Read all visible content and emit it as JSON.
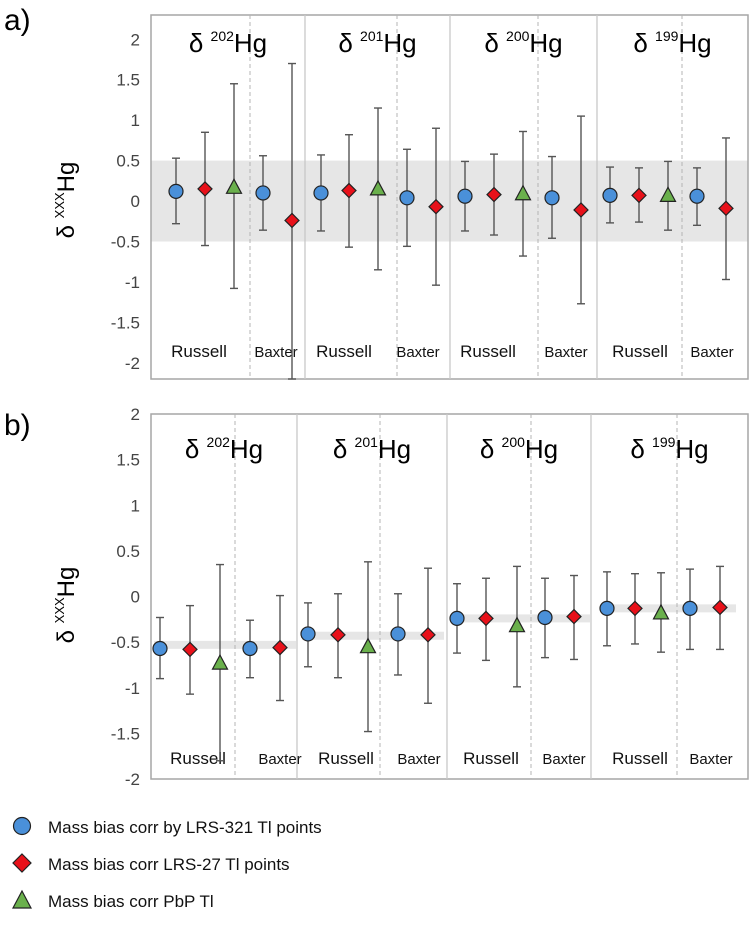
{
  "chart_data": [
    {
      "type": "scatter",
      "tag": "a)",
      "ylabel": "δ XXXHg",
      "ylim": [
        -2.2,
        2.3
      ],
      "yticks": [
        2,
        1.5,
        1,
        0.5,
        0,
        -0.5,
        -1,
        -1.5,
        -2
      ],
      "reference_band": [
        -0.5,
        0.5
      ],
      "groups": [
        {
          "prefix": "δ",
          "sup": "202",
          "suffix": "Hg",
          "labels": [
            "Russell",
            "Baxter"
          ],
          "points": [
            {
              "site": "Russell",
              "series": "LRS-321",
              "value": 0.12,
              "low": -0.28,
              "high": 0.53
            },
            {
              "site": "Russell",
              "series": "LRS-27",
              "value": 0.15,
              "low": -0.55,
              "high": 0.85
            },
            {
              "site": "Russell",
              "series": "PbP",
              "value": 0.17,
              "low": -1.08,
              "high": 1.45
            },
            {
              "site": "Baxter",
              "series": "LRS-321",
              "value": 0.1,
              "low": -0.36,
              "high": 0.56
            },
            {
              "site": "Baxter",
              "series": "LRS-27",
              "value": -0.24,
              "low": -2.2,
              "high": 1.7
            }
          ]
        },
        {
          "prefix": "δ",
          "sup": "201",
          "suffix": "Hg",
          "labels": [
            "Russell",
            "Baxter"
          ],
          "points": [
            {
              "site": "Russell",
              "series": "LRS-321",
              "value": 0.1,
              "low": -0.37,
              "high": 0.57
            },
            {
              "site": "Russell",
              "series": "LRS-27",
              "value": 0.13,
              "low": -0.57,
              "high": 0.82
            },
            {
              "site": "Russell",
              "series": "PbP",
              "value": 0.15,
              "low": -0.85,
              "high": 1.15
            },
            {
              "site": "Baxter",
              "series": "LRS-321",
              "value": 0.04,
              "low": -0.56,
              "high": 0.64
            },
            {
              "site": "Baxter",
              "series": "LRS-27",
              "value": -0.07,
              "low": -1.04,
              "high": 0.9
            }
          ]
        },
        {
          "prefix": "δ",
          "sup": "200",
          "suffix": "Hg",
          "labels": [
            "Russell",
            "Baxter"
          ],
          "points": [
            {
              "site": "Russell",
              "series": "LRS-321",
              "value": 0.06,
              "low": -0.37,
              "high": 0.49
            },
            {
              "site": "Russell",
              "series": "LRS-27",
              "value": 0.08,
              "low": -0.42,
              "high": 0.58
            },
            {
              "site": "Russell",
              "series": "PbP",
              "value": 0.09,
              "low": -0.68,
              "high": 0.86
            },
            {
              "site": "Baxter",
              "series": "LRS-321",
              "value": 0.04,
              "low": -0.46,
              "high": 0.55
            },
            {
              "site": "Baxter",
              "series": "LRS-27",
              "value": -0.11,
              "low": -1.27,
              "high": 1.05
            }
          ]
        },
        {
          "prefix": "δ",
          "sup": "199",
          "suffix": "Hg",
          "labels": [
            "Russell",
            "Baxter"
          ],
          "points": [
            {
              "site": "Russell",
              "series": "LRS-321",
              "value": 0.07,
              "low": -0.27,
              "high": 0.42
            },
            {
              "site": "Russell",
              "series": "LRS-27",
              "value": 0.07,
              "low": -0.26,
              "high": 0.41
            },
            {
              "site": "Russell",
              "series": "PbP",
              "value": 0.07,
              "low": -0.36,
              "high": 0.49
            },
            {
              "site": "Baxter",
              "series": "LRS-321",
              "value": 0.06,
              "low": -0.3,
              "high": 0.41
            },
            {
              "site": "Baxter",
              "series": "LRS-27",
              "value": -0.09,
              "low": -0.97,
              "high": 0.78
            }
          ]
        }
      ]
    },
    {
      "type": "scatter",
      "tag": "b)",
      "ylabel": "δ XXXHg",
      "ylim": [
        -2.0,
        2.0
      ],
      "yticks": [
        2,
        1.5,
        1,
        0.5,
        0,
        -0.5,
        -1,
        -1.5,
        -2
      ],
      "reference_levels": [
        -0.53,
        -0.43,
        -0.24,
        -0.13
      ],
      "groups": [
        {
          "prefix": "δ",
          "sup": "202",
          "suffix": "Hg",
          "labels": [
            "Russell",
            "Baxter"
          ],
          "points": [
            {
              "site": "Russell",
              "series": "LRS-321",
              "value": -0.57,
              "low": -0.9,
              "high": -0.23
            },
            {
              "site": "Russell",
              "series": "LRS-27",
              "value": -0.58,
              "low": -1.07,
              "high": -0.1
            },
            {
              "site": "Russell",
              "series": "PbP",
              "value": -0.73,
              "low": -1.8,
              "high": 0.35
            },
            {
              "site": "Baxter",
              "series": "LRS-321",
              "value": -0.57,
              "low": -0.89,
              "high": -0.26
            },
            {
              "site": "Baxter",
              "series": "LRS-27",
              "value": -0.56,
              "low": -1.14,
              "high": 0.01
            }
          ]
        },
        {
          "prefix": "δ",
          "sup": "201",
          "suffix": "Hg",
          "labels": [
            "Russell",
            "Baxter"
          ],
          "points": [
            {
              "site": "Russell",
              "series": "LRS-321",
              "value": -0.41,
              "low": -0.77,
              "high": -0.07
            },
            {
              "site": "Russell",
              "series": "LRS-27",
              "value": -0.42,
              "low": -0.89,
              "high": 0.03
            },
            {
              "site": "Russell",
              "series": "PbP",
              "value": -0.55,
              "low": -1.48,
              "high": 0.38
            },
            {
              "site": "Baxter",
              "series": "LRS-321",
              "value": -0.41,
              "low": -0.86,
              "high": 0.03
            },
            {
              "site": "Baxter",
              "series": "LRS-27",
              "value": -0.42,
              "low": -1.17,
              "high": 0.31
            }
          ]
        },
        {
          "prefix": "δ",
          "sup": "200",
          "suffix": "Hg",
          "labels": [
            "Russell",
            "Baxter"
          ],
          "points": [
            {
              "site": "Russell",
              "series": "LRS-321",
              "value": -0.24,
              "low": -0.62,
              "high": 0.14
            },
            {
              "site": "Russell",
              "series": "LRS-27",
              "value": -0.24,
              "low": -0.7,
              "high": 0.2
            },
            {
              "site": "Russell",
              "series": "PbP",
              "value": -0.32,
              "low": -0.99,
              "high": 0.33
            },
            {
              "site": "Baxter",
              "series": "LRS-321",
              "value": -0.23,
              "low": -0.67,
              "high": 0.2
            },
            {
              "site": "Baxter",
              "series": "LRS-27",
              "value": -0.22,
              "low": -0.69,
              "high": 0.23
            }
          ]
        },
        {
          "prefix": "δ",
          "sup": "199",
          "suffix": "Hg",
          "labels": [
            "Russell",
            "Baxter"
          ],
          "points": [
            {
              "site": "Russell",
              "series": "LRS-321",
              "value": -0.13,
              "low": -0.54,
              "high": 0.27
            },
            {
              "site": "Russell",
              "series": "LRS-27",
              "value": -0.13,
              "low": -0.52,
              "high": 0.25
            },
            {
              "site": "Russell",
              "series": "PbP",
              "value": -0.18,
              "low": -0.61,
              "high": 0.26
            },
            {
              "site": "Baxter",
              "series": "LRS-321",
              "value": -0.13,
              "low": -0.58,
              "high": 0.3
            },
            {
              "site": "Baxter",
              "series": "LRS-27",
              "value": -0.12,
              "low": -0.58,
              "high": 0.33
            }
          ]
        }
      ]
    }
  ],
  "legend": [
    {
      "series": "LRS-321",
      "label": "Mass bias corr by LRS-321 Tl points",
      "marker": "circle",
      "color": "#4a90d9"
    },
    {
      "series": "LRS-27",
      "label": "Mass bias corr LRS-27 Tl points",
      "marker": "diamond",
      "color": "#e8111a"
    },
    {
      "series": "PbP",
      "label": "Mass bias corr PbP Tl",
      "marker": "triangle",
      "color": "#6ab04c"
    }
  ],
  "colors": {
    "frame": "#a6a6a6",
    "divider_solid": "#c8c8c8",
    "divider_dashed": "#b4b4b4",
    "band": "#e6e6e6",
    "errorbar": "#555555",
    "marker_edge": "#222222"
  }
}
